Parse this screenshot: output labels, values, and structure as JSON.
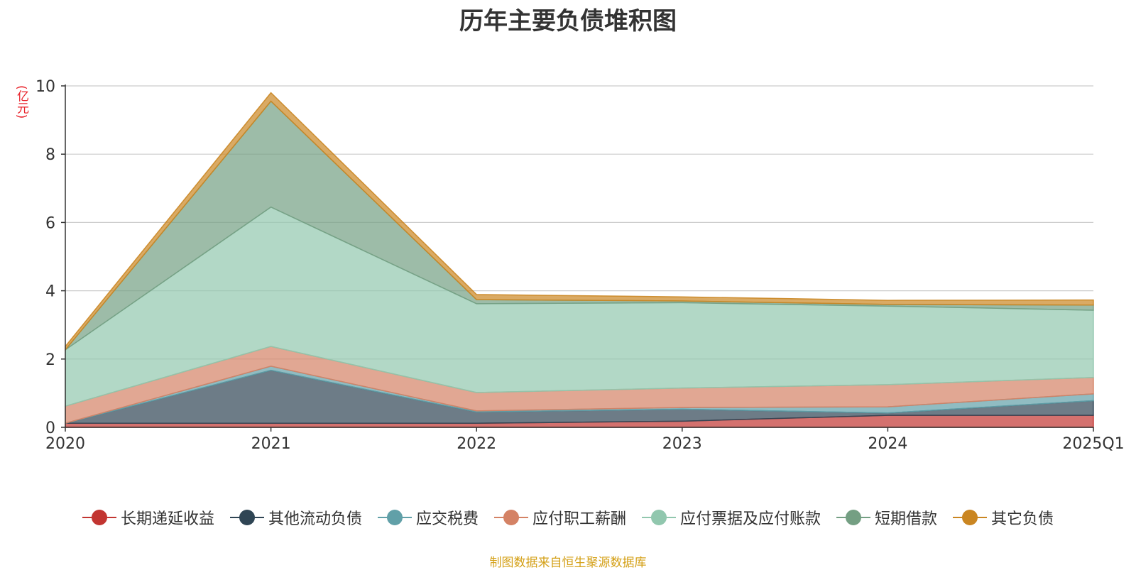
{
  "chart_data": {
    "type": "area",
    "stacked": true,
    "title": "历年主要负债堆积图",
    "ylabel": "(亿元)",
    "categories": [
      "2020",
      "2021",
      "2022",
      "2023",
      "2024",
      "2025Q1"
    ],
    "ylim": [
      0,
      10
    ],
    "yticks": [
      "0",
      "2",
      "4",
      "6",
      "8",
      "10"
    ],
    "grid": true,
    "legend_position": "bottom",
    "series": [
      {
        "name": "长期递延收益",
        "color": "#c23531",
        "values": [
          0.12,
          0.12,
          0.12,
          0.18,
          0.35,
          0.35
        ]
      },
      {
        "name": "其他流动负债",
        "color": "#2f4554",
        "values": [
          0.0,
          1.55,
          0.33,
          0.35,
          0.07,
          0.43
        ]
      },
      {
        "name": "应交税费",
        "color": "#61a0a8",
        "values": [
          0.0,
          0.12,
          0.03,
          0.05,
          0.18,
          0.2
        ]
      },
      {
        "name": "应付职工薪酬",
        "color": "#d48265",
        "values": [
          0.5,
          0.58,
          0.54,
          0.57,
          0.65,
          0.48
        ]
      },
      {
        "name": "应付票据及应付账款",
        "color": "#91c7ae",
        "values": [
          1.65,
          4.08,
          2.6,
          2.5,
          2.3,
          1.97
        ]
      },
      {
        "name": "短期借款",
        "color": "#749f83",
        "values": [
          0.0,
          3.1,
          0.12,
          0.05,
          0.05,
          0.15
        ]
      },
      {
        "name": "其它负债",
        "color": "#ca8622",
        "values": [
          0.1,
          0.25,
          0.15,
          0.12,
          0.12,
          0.15
        ]
      }
    ]
  },
  "source_note": "制图数据来自恒生聚源数据库"
}
